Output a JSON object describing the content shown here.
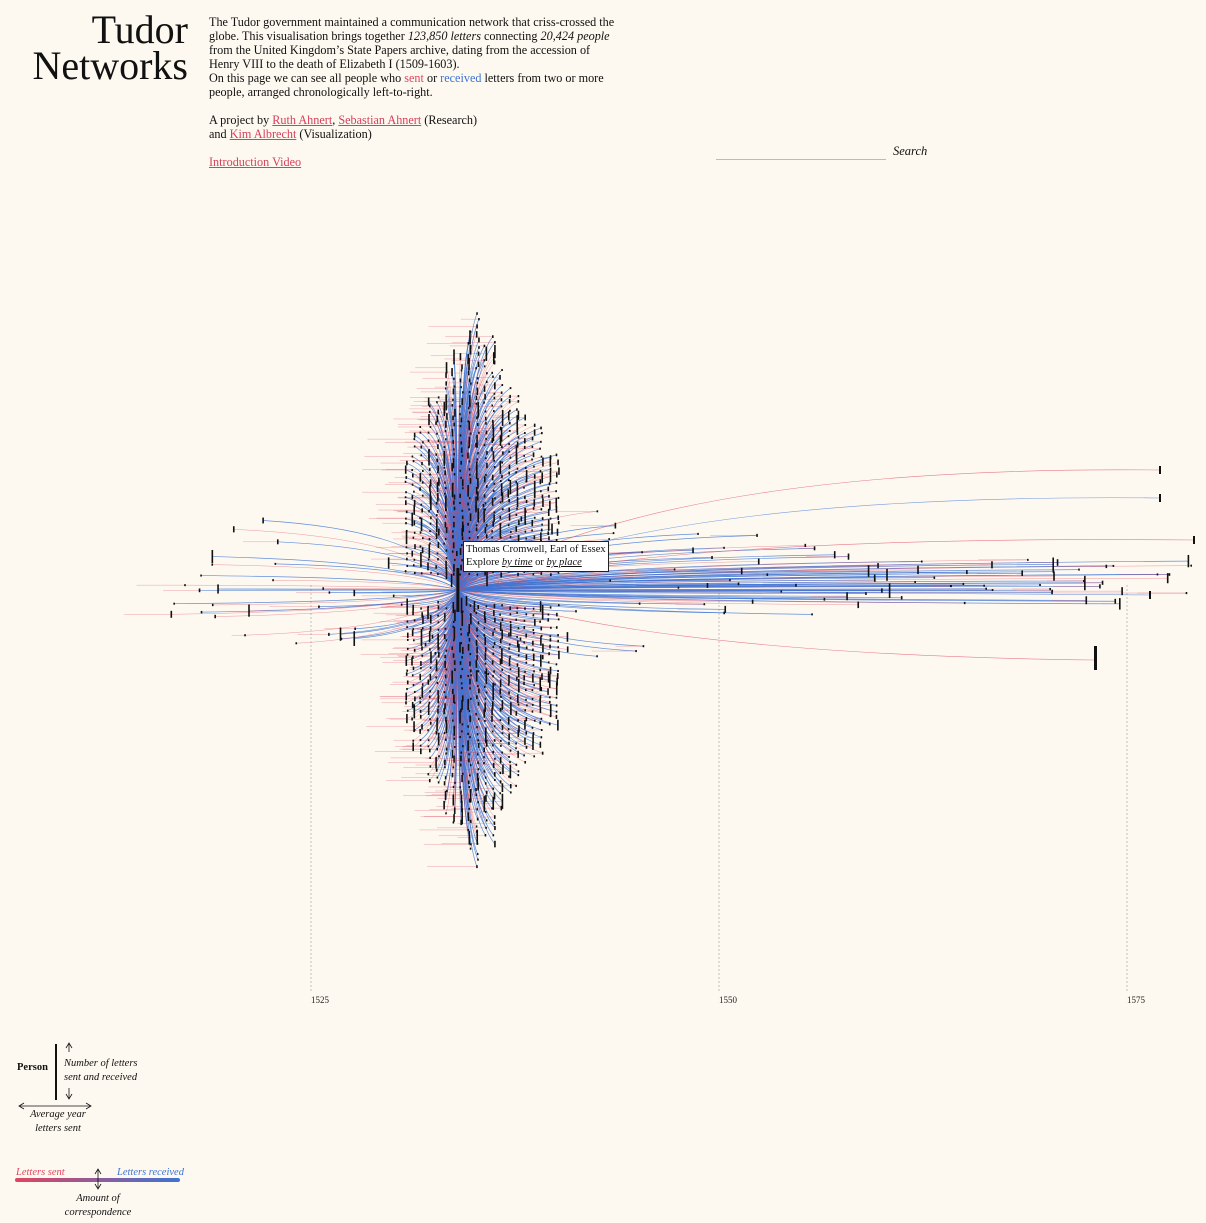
{
  "title": {
    "line1": "Tudor",
    "line2": "Networks"
  },
  "intro": {
    "t1": "The Tudor government maintained a communication network that criss-crossed the globe. This visualisation brings together ",
    "letters_count": "123,850 letters",
    "t2": " connecting ",
    "people_count": "20,424 people",
    "t3": " from the United Kingdom’s State Papers archive, dating from the accession of Henry VIII to the death of Elizabeth I (1509-1603).",
    "t4": "On this page we can see all people who ",
    "sent": "sent",
    "t5": " or ",
    "received": "received",
    "t6": " letters from two or more people, arranged chronologically left-to-right."
  },
  "credits": {
    "prefix": "A project by ",
    "person1": "Ruth Ahnert",
    "sep": ", ",
    "person2": "Sebastian Ahnert",
    "research": " (Research)",
    "and": "and ",
    "person3": "Kim Albrecht",
    "viz": " (Visualization)"
  },
  "video_link": "Introduction Video",
  "search": {
    "label": "Search",
    "value": ""
  },
  "tooltip": {
    "name": "Thomas Cromwell, Earl of Essex",
    "explore": "Explore ",
    "by_time": "by time",
    "or": " or ",
    "by_place": "by place"
  },
  "legend": {
    "person": "Person",
    "number_line1": "Number of letters",
    "number_line2": "sent and received",
    "avg_line1": "Average year",
    "avg_line2": "letters sent",
    "letters_sent": "Letters sent",
    "letters_received": "Letters received",
    "amount_line1": "Amount of",
    "amount_line2": "correspondence"
  },
  "colors": {
    "sent": "#e0455f",
    "received": "#3d74d4",
    "background": "#fdf9f0"
  },
  "chart_data": {
    "type": "scatter",
    "x_axis": {
      "ticks": [
        1525,
        1550,
        1575
      ],
      "range": [
        1515,
        1580
      ]
    },
    "hub": {
      "name": "Thomas Cromwell, Earl of Essex",
      "year": 1534
    },
    "grid": "vertical dotted lines at ticks"
  }
}
